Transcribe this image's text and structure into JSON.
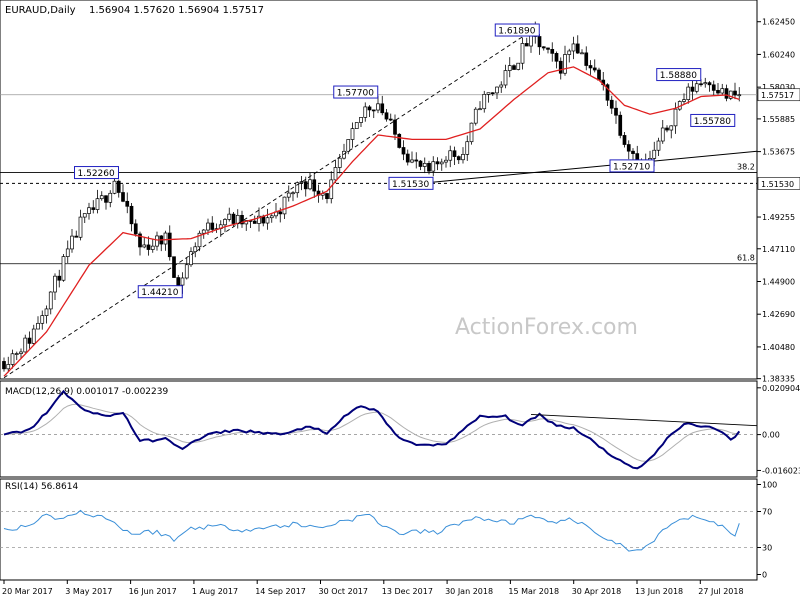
{
  "chart_data": {
    "type": "candlestick",
    "header": {
      "symbol": "EURAUD,Daily",
      "ohlc": "1.56904 1.57620 1.56904 1.57517"
    },
    "watermark": "ActionForex.com",
    "last_price": 1.57517,
    "last_price_label": "1.57517",
    "price_axis": {
      "range": [
        1.3838,
        1.6385
      ],
      "ticks": [
        {
          "v": 1.6245,
          "label": "1.62450"
        },
        {
          "v": 1.6024,
          "label": "1.60240"
        },
        {
          "v": 1.5803,
          "label": "1.58030"
        },
        {
          "v": 1.55885,
          "label": "1.55885"
        },
        {
          "v": 1.53675,
          "label": "1.53675"
        },
        {
          "v": 1.49255,
          "label": "1.49255"
        },
        {
          "v": 1.4711,
          "label": "1.47110"
        },
        {
          "v": 1.449,
          "label": "1.44900"
        },
        {
          "v": 1.4269,
          "label": "1.42690"
        },
        {
          "v": 1.4048,
          "label": "1.40480"
        },
        {
          "v": 1.38335,
          "label": "1.38335"
        }
      ]
    },
    "fib_levels": [
      {
        "label": "38.2",
        "value": 1.5226
      },
      {
        "label": "61.8",
        "value": 1.461
      }
    ],
    "support_level": {
      "value": 1.5153,
      "label": "1.51530"
    },
    "price_labels": [
      {
        "text": "1.52260",
        "value": 1.5226,
        "bar": 26
      },
      {
        "text": "1.44210",
        "value": 1.4421,
        "bar": 41
      },
      {
        "text": "1.57700",
        "value": 1.577,
        "bar": 87
      },
      {
        "text": "1.51530",
        "value": 1.5153,
        "bar": 100
      },
      {
        "text": "1.61890",
        "value": 1.6189,
        "bar": 125
      },
      {
        "text": "1.52710",
        "value": 1.5271,
        "bar": 152
      },
      {
        "text": "1.58880",
        "value": 1.5888,
        "bar": 163
      },
      {
        "text": "1.55780",
        "value": 1.5578,
        "bar": 171
      }
    ],
    "time_axis": [
      "20 Mar 2017",
      "3 May 2017",
      "16 Jun 2017",
      "1 Aug 2017",
      "14 Sep 2017",
      "30 Oct 2017",
      "13 Dec 2017",
      "30 Jan 2018",
      "15 Mar 2018",
      "30 Apr 2018",
      "13 Jun 2018",
      "27 Jul 2018"
    ],
    "price_anchors": [
      [
        0,
        1.395
      ],
      [
        6,
        1.41
      ],
      [
        12,
        1.448
      ],
      [
        18,
        1.488
      ],
      [
        24,
        1.507
      ],
      [
        26,
        1.518
      ],
      [
        32,
        1.472
      ],
      [
        38,
        1.478
      ],
      [
        41,
        1.446
      ],
      [
        46,
        1.482
      ],
      [
        52,
        1.492
      ],
      [
        58,
        1.487
      ],
      [
        64,
        1.495
      ],
      [
        70,
        1.518
      ],
      [
        76,
        1.508
      ],
      [
        80,
        1.535
      ],
      [
        85,
        1.566
      ],
      [
        88,
        1.57
      ],
      [
        92,
        1.548
      ],
      [
        96,
        1.53
      ],
      [
        100,
        1.522
      ],
      [
        104,
        1.535
      ],
      [
        108,
        1.535
      ],
      [
        112,
        1.57
      ],
      [
        116,
        1.58
      ],
      [
        120,
        1.596
      ],
      [
        124,
        1.615
      ],
      [
        128,
        1.602
      ],
      [
        131,
        1.594
      ],
      [
        134,
        1.612
      ],
      [
        138,
        1.594
      ],
      [
        142,
        1.575
      ],
      [
        146,
        1.545
      ],
      [
        150,
        1.528
      ],
      [
        152,
        1.53
      ],
      [
        155,
        1.548
      ],
      [
        159,
        1.57
      ],
      [
        163,
        1.583
      ],
      [
        166,
        1.585
      ],
      [
        170,
        1.574
      ],
      [
        173,
        1.575
      ]
    ],
    "ma_anchors": [
      [
        0,
        1.385
      ],
      [
        10,
        1.415
      ],
      [
        20,
        1.46
      ],
      [
        28,
        1.482
      ],
      [
        36,
        1.477
      ],
      [
        44,
        1.478
      ],
      [
        52,
        1.486
      ],
      [
        60,
        1.492
      ],
      [
        68,
        1.5
      ],
      [
        76,
        1.51
      ],
      [
        82,
        1.53
      ],
      [
        88,
        1.548
      ],
      [
        96,
        1.545
      ],
      [
        104,
        1.545
      ],
      [
        112,
        1.552
      ],
      [
        120,
        1.572
      ],
      [
        128,
        1.59
      ],
      [
        134,
        1.594
      ],
      [
        140,
        1.585
      ],
      [
        146,
        1.568
      ],
      [
        152,
        1.562
      ],
      [
        158,
        1.566
      ],
      [
        164,
        1.574
      ],
      [
        170,
        1.575
      ],
      [
        173,
        1.572
      ]
    ],
    "macd": {
      "title": "MACD(12,26,9) 0.001017 -0.002239",
      "ticks": [
        {
          "v": 0.020904,
          "label": "0.020904"
        },
        {
          "v": 0.0,
          "label": "0.00"
        },
        {
          "v": -0.016023,
          "label": "-0.016023"
        }
      ],
      "range": [
        -0.0185,
        0.0235
      ],
      "anchors": [
        [
          0,
          0.0
        ],
        [
          6,
          0.002
        ],
        [
          10,
          0.01
        ],
        [
          14,
          0.019
        ],
        [
          18,
          0.012
        ],
        [
          24,
          0.008
        ],
        [
          28,
          0.01
        ],
        [
          32,
          -0.003
        ],
        [
          38,
          -0.002
        ],
        [
          42,
          -0.006
        ],
        [
          48,
          0.0
        ],
        [
          54,
          0.002
        ],
        [
          60,
          0.001
        ],
        [
          66,
          0.0
        ],
        [
          72,
          0.004
        ],
        [
          76,
          0.0
        ],
        [
          80,
          0.008
        ],
        [
          84,
          0.013
        ],
        [
          88,
          0.01
        ],
        [
          92,
          0.0
        ],
        [
          96,
          -0.004
        ],
        [
          100,
          -0.005
        ],
        [
          104,
          -0.004
        ],
        [
          108,
          0.002
        ],
        [
          112,
          0.008
        ],
        [
          118,
          0.008
        ],
        [
          122,
          0.004
        ],
        [
          126,
          0.009
        ],
        [
          130,
          0.004
        ],
        [
          134,
          0.003
        ],
        [
          138,
          -0.002
        ],
        [
          142,
          -0.008
        ],
        [
          146,
          -0.013
        ],
        [
          149,
          -0.015
        ],
        [
          152,
          -0.011
        ],
        [
          156,
          -0.002
        ],
        [
          160,
          0.005
        ],
        [
          164,
          0.004
        ],
        [
          168,
          0.002
        ],
        [
          171,
          -0.002
        ],
        [
          173,
          0.001
        ]
      ]
    },
    "rsi": {
      "title": "RSI(14) 56.8614",
      "ticks": [
        {
          "v": 100,
          "label": "100"
        },
        {
          "v": 70,
          "label": "70"
        },
        {
          "v": 30,
          "label": "30"
        },
        {
          "v": 0,
          "label": "0"
        }
      ],
      "range": [
        -5,
        105
      ],
      "anchors": [
        [
          0,
          50
        ],
        [
          6,
          55
        ],
        [
          10,
          66
        ],
        [
          14,
          62
        ],
        [
          18,
          70
        ],
        [
          24,
          63
        ],
        [
          30,
          45
        ],
        [
          36,
          48
        ],
        [
          40,
          38
        ],
        [
          44,
          52
        ],
        [
          50,
          54
        ],
        [
          56,
          50
        ],
        [
          62,
          52
        ],
        [
          68,
          56
        ],
        [
          74,
          52
        ],
        [
          80,
          60
        ],
        [
          86,
          66
        ],
        [
          90,
          52
        ],
        [
          94,
          45
        ],
        [
          98,
          48
        ],
        [
          102,
          46
        ],
        [
          106,
          56
        ],
        [
          110,
          62
        ],
        [
          116,
          60
        ],
        [
          120,
          58
        ],
        [
          124,
          64
        ],
        [
          128,
          57
        ],
        [
          132,
          62
        ],
        [
          136,
          55
        ],
        [
          140,
          45
        ],
        [
          144,
          35
        ],
        [
          148,
          25
        ],
        [
          152,
          32
        ],
        [
          156,
          52
        ],
        [
          160,
          62
        ],
        [
          164,
          64
        ],
        [
          168,
          56
        ],
        [
          172,
          42
        ],
        [
          173,
          57
        ]
      ]
    }
  }
}
